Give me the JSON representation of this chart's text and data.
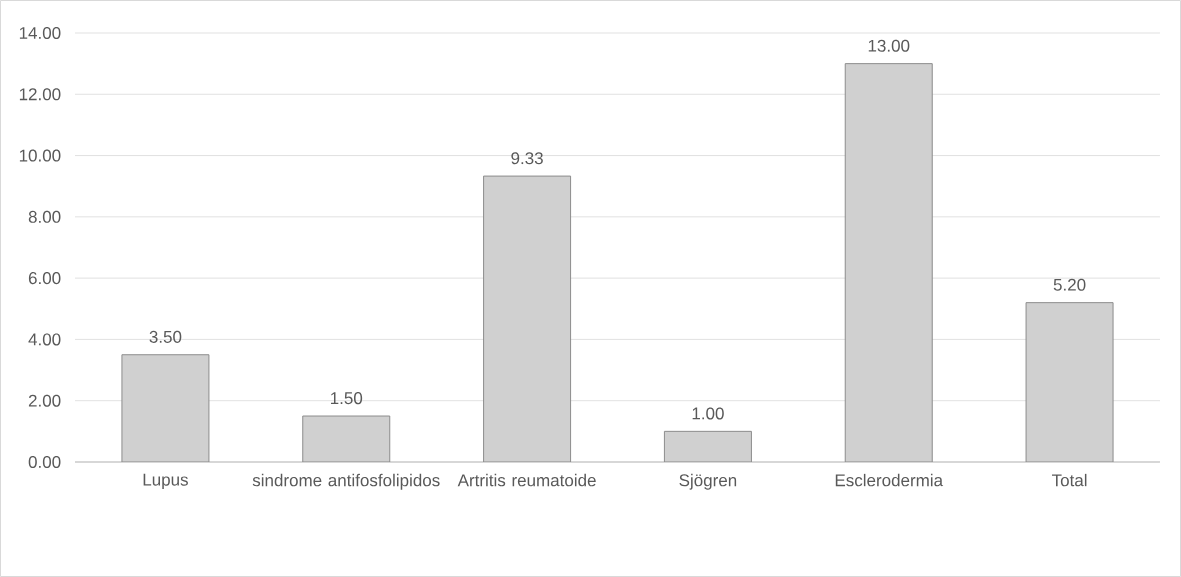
{
  "chart_data": {
    "type": "bar",
    "categories": [
      "Lupus",
      "sindrome antifosfolipidos",
      "Artritis reumatoide",
      "Sjögren",
      "Esclerodermia",
      "Total"
    ],
    "values": [
      3.5,
      1.5,
      9.33,
      1.0,
      13.0,
      5.2
    ],
    "value_labels": [
      "3.50",
      "1.50",
      "9.33",
      "1.00",
      "13.00",
      "5.20"
    ],
    "color": "#d0d0d0",
    "ylim": [
      0,
      14
    ],
    "yticks": [
      {
        "value": 0,
        "label": "0.00"
      },
      {
        "value": 2,
        "label": "2.00"
      },
      {
        "value": 4,
        "label": "4.00"
      },
      {
        "value": 6,
        "label": "6.00"
      },
      {
        "value": 8,
        "label": "8.00"
      },
      {
        "value": 10,
        "label": "10.00"
      },
      {
        "value": 12,
        "label": "12.00"
      },
      {
        "value": 14,
        "label": "14.00"
      }
    ],
    "grid": "y"
  }
}
